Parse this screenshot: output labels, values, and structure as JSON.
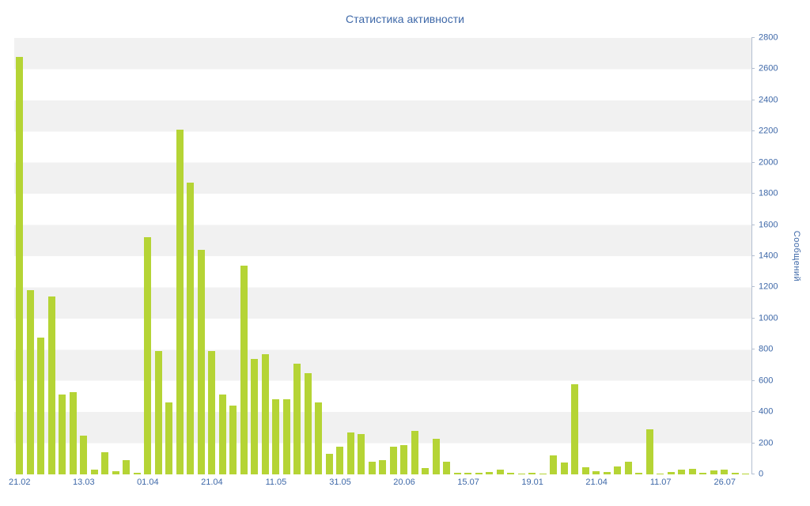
{
  "chart_data": {
    "type": "bar",
    "title": "Статистика активности",
    "xlabel": "",
    "ylabel": "Сообщений",
    "ylim": [
      0,
      2800
    ],
    "grid": "alternating-horizontal-bands",
    "legend": "none",
    "bar_color": "#b5d435",
    "band_colors": [
      "#f1f1f1",
      "#ffffff"
    ],
    "text_color": "#3e68a8",
    "axis_line_color": "#b3bfd1",
    "y_ticks": [
      0,
      200,
      400,
      600,
      800,
      1000,
      1200,
      1400,
      1600,
      1800,
      2000,
      2200,
      2400,
      2600,
      2800
    ],
    "x_tick_labels": [
      "21.02",
      "13.03",
      "01.04",
      "21.04",
      "11.05",
      "31.05",
      "20.06",
      "15.07",
      "19.01",
      "21.04",
      "11.07",
      "26.07"
    ],
    "x_tick_positions": [
      0,
      6,
      12,
      18,
      24,
      30,
      36,
      42,
      48,
      54,
      60,
      66
    ],
    "values": [
      2680,
      1180,
      880,
      1140,
      510,
      530,
      250,
      30,
      140,
      20,
      90,
      10,
      1520,
      790,
      460,
      2210,
      1870,
      1440,
      790,
      510,
      440,
      1340,
      740,
      770,
      480,
      480,
      710,
      650,
      460,
      130,
      180,
      270,
      260,
      80,
      90,
      180,
      190,
      280,
      40,
      230,
      80,
      10,
      10,
      10,
      15,
      30,
      10,
      5,
      10,
      5,
      120,
      75,
      580,
      45,
      20,
      15,
      50,
      80,
      10,
      290,
      5,
      15,
      30,
      35,
      10,
      25,
      30,
      10,
      5
    ]
  }
}
